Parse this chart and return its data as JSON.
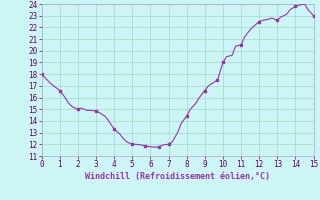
{
  "xlabel": "Windchill (Refroidissement éolien,°C)",
  "xlim": [
    0,
    15
  ],
  "ylim": [
    11,
    24
  ],
  "yticks": [
    11,
    12,
    13,
    14,
    15,
    16,
    17,
    18,
    19,
    20,
    21,
    22,
    23,
    24
  ],
  "xticks": [
    0,
    1,
    2,
    3,
    4,
    5,
    6,
    7,
    8,
    9,
    10,
    11,
    12,
    13,
    14,
    15
  ],
  "line_color": "#9933aa",
  "bg_color": "#ccf5f5",
  "grid_color": "#aaddcc",
  "x": [
    0,
    0.25,
    0.5,
    0.75,
    1.0,
    1.25,
    1.5,
    1.7,
    2.0,
    2.2,
    2.5,
    2.7,
    3.0,
    3.2,
    3.5,
    3.7,
    4.0,
    4.3,
    4.5,
    4.7,
    5.0,
    5.2,
    5.5,
    5.7,
    6.0,
    6.2,
    6.5,
    6.7,
    7.0,
    7.2,
    7.5,
    7.7,
    8.0,
    8.2,
    8.5,
    8.7,
    9.0,
    9.2,
    9.5,
    9.7,
    10.0,
    10.2,
    10.5,
    10.7,
    11.0,
    11.2,
    11.5,
    11.7,
    12.0,
    12.2,
    12.5,
    12.7,
    13.0,
    13.2,
    13.5,
    13.7,
    14.0,
    14.2,
    14.5,
    14.7,
    15.0
  ],
  "y": [
    18.0,
    17.6,
    17.2,
    16.9,
    16.6,
    16.1,
    15.5,
    15.2,
    15.0,
    15.1,
    14.9,
    14.9,
    14.85,
    14.7,
    14.4,
    14.0,
    13.3,
    12.9,
    12.5,
    12.2,
    12.0,
    12.0,
    11.95,
    11.85,
    11.8,
    11.75,
    11.8,
    11.95,
    12.0,
    12.2,
    13.0,
    13.8,
    14.4,
    15.0,
    15.5,
    16.0,
    16.6,
    17.0,
    17.3,
    17.5,
    19.0,
    19.5,
    19.6,
    20.4,
    20.5,
    21.2,
    21.8,
    22.1,
    22.5,
    22.6,
    22.7,
    22.8,
    22.6,
    22.9,
    23.1,
    23.5,
    23.8,
    23.9,
    24.0,
    23.5,
    23.0
  ],
  "marker_x": [
    0,
    1.0,
    2.0,
    3.0,
    4.0,
    5.0,
    5.7,
    6.5,
    7.0,
    8.0,
    9.0,
    9.7,
    10.0,
    11.0,
    12.0,
    13.0,
    14.0,
    15.0
  ],
  "marker_y": [
    18.0,
    16.6,
    15.0,
    14.85,
    13.3,
    12.0,
    11.85,
    11.8,
    12.0,
    14.4,
    16.6,
    17.5,
    19.0,
    20.5,
    22.5,
    22.6,
    23.8,
    23.0
  ]
}
